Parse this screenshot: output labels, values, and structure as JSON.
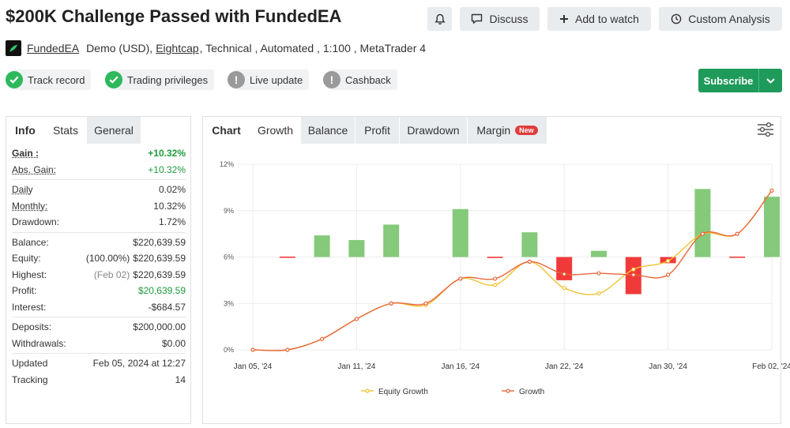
{
  "page": {
    "title": "$200K Challenge Passed with FundedEA"
  },
  "actions": {
    "notify_icon": "bell-icon",
    "discuss": "Discuss",
    "add_watch": "Add to watch",
    "custom_analysis": "Custom Analysis"
  },
  "meta": {
    "author": "FundedEA",
    "account": "Demo (USD),",
    "broker": "Eightcap",
    "rest": ", Technical , Automated , 1:100 , MetaTrader 4"
  },
  "badges": [
    {
      "label": "Track record",
      "status": "ok"
    },
    {
      "label": "Trading privileges",
      "status": "ok"
    },
    {
      "label": "Live update",
      "status": "no"
    },
    {
      "label": "Cashback",
      "status": "no"
    }
  ],
  "subscribe": {
    "label": "Subscribe"
  },
  "stats_tabs": [
    "Info",
    "Stats",
    "General"
  ],
  "stats": {
    "gain": {
      "label": "Gain :",
      "value": "+10.32%"
    },
    "abs_gain": {
      "label": "Abs. Gain:",
      "value": "+10.32%"
    },
    "daily": {
      "label": "Daily",
      "value": "0.02%"
    },
    "monthly": {
      "label": "Monthly:",
      "value": "10.32%"
    },
    "drawdown": {
      "label": "Drawdown:",
      "value": "1.72%"
    },
    "balance": {
      "label": "Balance:",
      "value": "$220,639.59"
    },
    "equity": {
      "label": "Equity:",
      "note": "(100.00%)",
      "value": "$220,639.59"
    },
    "highest": {
      "label": "Highest:",
      "note": "(Feb 02)",
      "value": "$220,639.59"
    },
    "profit": {
      "label": "Profit:",
      "value": "$20,639.59"
    },
    "interest": {
      "label": "Interest:",
      "value": "-$684.57"
    },
    "deposits": {
      "label": "Deposits:",
      "value": "$200,000.00"
    },
    "withdrawals": {
      "label": "Withdrawals:",
      "value": "$0.00"
    },
    "updated": {
      "label": "Updated",
      "value": "Feb 05, 2024 at 12:27"
    },
    "tracking": {
      "label": "Tracking",
      "value": "14"
    }
  },
  "chart_tabs": {
    "chart": "Chart",
    "growth": "Growth",
    "balance": "Balance",
    "profit": "Profit",
    "drawdown": "Drawdown",
    "margin": "Margin",
    "new_badge": "New"
  },
  "chart_data": {
    "type": "line",
    "title": "",
    "x_tick_labels": [
      "Jan 05, '24",
      "Jan 11, '24",
      "Jan 16, '24",
      "Jan 22, '24",
      "Jan 30, '24",
      "Feb 02, '24"
    ],
    "x_tick_index": [
      0,
      3,
      6,
      9,
      12,
      15
    ],
    "ylim": [
      0,
      12
    ],
    "yticks": [
      0,
      3,
      6,
      9,
      12
    ],
    "ytick_labels": [
      "0%",
      "3%",
      "6%",
      "9%",
      "12%"
    ],
    "grid": true,
    "legend_position": "bottom",
    "series": [
      {
        "name": "Equity Growth",
        "color": "#f2c230",
        "values": [
          0,
          0,
          0.7,
          2.0,
          3.0,
          2.9,
          4.6,
          4.2,
          5.7,
          4.0,
          3.65,
          5.2,
          5.75,
          7.5,
          7.5,
          10.3
        ]
      },
      {
        "name": "Growth",
        "color": "#e8673c",
        "values": [
          0,
          0,
          0.7,
          2.0,
          3.0,
          3.0,
          4.6,
          4.6,
          5.7,
          4.9,
          4.95,
          4.85,
          4.85,
          7.5,
          7.5,
          10.3
        ]
      }
    ],
    "bars": {
      "baseline": 6,
      "positive_color": "#85c97a",
      "negative_color": "#f03a3a",
      "values": [
        0,
        0.03,
        1.4,
        1.1,
        2.1,
        0,
        3.1,
        0.02,
        1.6,
        -1.5,
        0.4,
        -2.4,
        -0.4,
        4.4,
        0.03,
        3.9
      ]
    }
  }
}
